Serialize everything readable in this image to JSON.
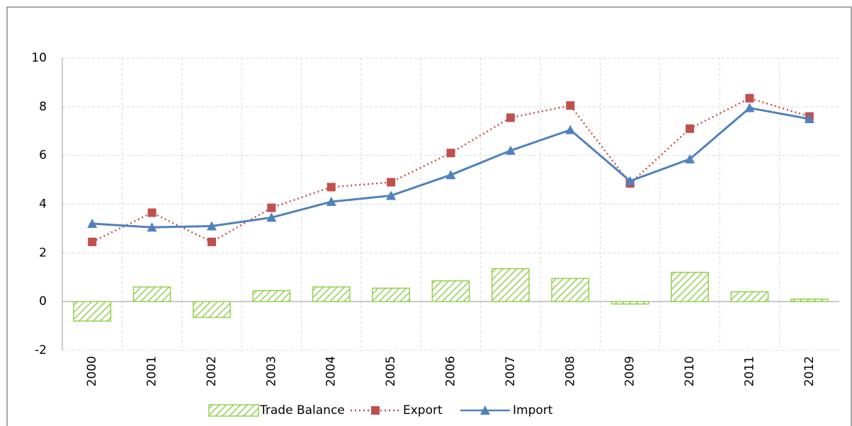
{
  "chart_data": {
    "type": "combo",
    "categories": [
      "2000",
      "2001",
      "2002",
      "2003",
      "2004",
      "2005",
      "2006",
      "2007",
      "2008",
      "2009",
      "2010",
      "2011",
      "2012"
    ],
    "series": [
      {
        "name": "Trade Balance",
        "type": "bar",
        "color": "#92d050",
        "values": [
          -0.8,
          0.6,
          -0.65,
          0.45,
          0.6,
          0.55,
          0.85,
          1.35,
          0.95,
          -0.1,
          1.2,
          0.4,
          0.1
        ]
      },
      {
        "name": "Export",
        "type": "line",
        "color": "#c0504d",
        "values": [
          2.45,
          3.65,
          2.45,
          3.85,
          4.7,
          4.9,
          6.1,
          7.55,
          8.05,
          4.85,
          7.1,
          8.35,
          7.6
        ]
      },
      {
        "name": "Import",
        "type": "line",
        "color": "#4f81bd",
        "values": [
          3.2,
          3.05,
          3.1,
          3.45,
          4.1,
          4.35,
          5.2,
          6.2,
          7.05,
          4.95,
          5.85,
          7.95,
          7.5
        ]
      }
    ],
    "ylim": [
      -2,
      10
    ],
    "yticks": [
      -2,
      0,
      2,
      4,
      6,
      8,
      10
    ],
    "grid": true,
    "legend": "bottom"
  }
}
